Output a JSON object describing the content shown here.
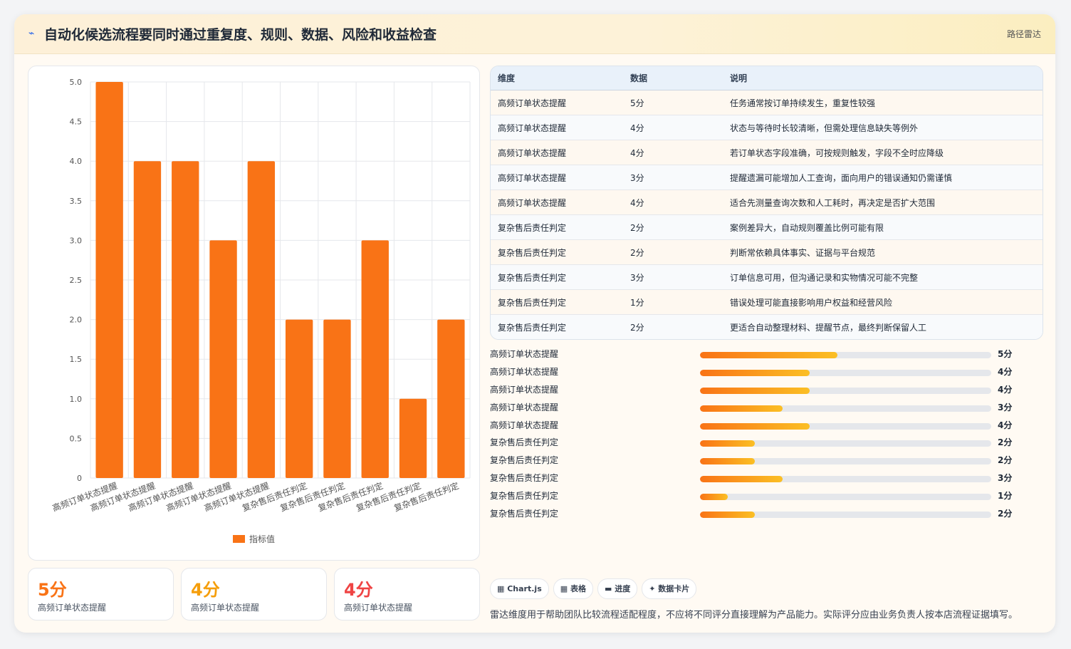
{
  "header": {
    "icon": "pulse-icon",
    "title": "自动化候选流程要同时通过重复度、规则、数据、风险和收益检查",
    "tag": "路径雷达"
  },
  "chart_data": {
    "type": "bar",
    "categories": [
      "高频订单状态提醒",
      "高频订单状态提醒",
      "高频订单状态提醒",
      "高频订单状态提醒",
      "高频订单状态提醒",
      "复杂售后责任判定",
      "复杂售后责任判定",
      "复杂售后责任判定",
      "复杂售后责任判定",
      "复杂售后责任判定"
    ],
    "series": [
      {
        "name": "指标值",
        "values": [
          5,
          4,
          4,
          3,
          4,
          2,
          2,
          3,
          1,
          2
        ]
      }
    ],
    "ylim": [
      0,
      5
    ],
    "yticks": [
      "0",
      "0.5",
      "1.0",
      "1.5",
      "2.0",
      "2.5",
      "3.0",
      "3.5",
      "4.0",
      "4.5",
      "5.0"
    ],
    "color": "#f97316",
    "grid": true,
    "legend": "bottom"
  },
  "stats": [
    {
      "value": "5分",
      "label": "高频订单状态提醒",
      "color": "#f97316"
    },
    {
      "value": "4分",
      "label": "高频订单状态提醒",
      "color": "#f59e0b"
    },
    {
      "value": "4分",
      "label": "高频订单状态提醒",
      "color": "#ef4444"
    }
  ],
  "table": {
    "headers": [
      "维度",
      "数据",
      "说明"
    ],
    "rows": [
      [
        "高频订单状态提醒",
        "5分",
        "任务通常按订单持续发生，重复性较强"
      ],
      [
        "高频订单状态提醒",
        "4分",
        "状态与等待时长较清晰，但需处理信息缺失等例外"
      ],
      [
        "高频订单状态提醒",
        "4分",
        "若订单状态字段准确，可按规则触发，字段不全时应降级"
      ],
      [
        "高频订单状态提醒",
        "3分",
        "提醒遗漏可能增加人工查询，面向用户的错误通知仍需谨慎"
      ],
      [
        "高频订单状态提醒",
        "4分",
        "适合先测量查询次数和人工耗时，再决定是否扩大范围"
      ],
      [
        "复杂售后责任判定",
        "2分",
        "案例差异大，自动规则覆盖比例可能有限"
      ],
      [
        "复杂售后责任判定",
        "2分",
        "判断常依赖具体事实、证据与平台规范"
      ],
      [
        "复杂售后责任判定",
        "3分",
        "订单信息可用，但沟通记录和实物情况可能不完整"
      ],
      [
        "复杂售后责任判定",
        "1分",
        "错误处理可能直接影响用户权益和经营风险"
      ],
      [
        "复杂售后责任判定",
        "2分",
        "更适合自动整理材料、提醒节点，最终判断保留人工"
      ]
    ]
  },
  "progress": [
    {
      "label": "高频订单状态提醒",
      "value": 5,
      "display": "5分"
    },
    {
      "label": "高频订单状态提醒",
      "value": 4,
      "display": "4分"
    },
    {
      "label": "高频订单状态提醒",
      "value": 4,
      "display": "4分"
    },
    {
      "label": "高频订单状态提醒",
      "value": 3,
      "display": "3分"
    },
    {
      "label": "高频订单状态提醒",
      "value": 4,
      "display": "4分"
    },
    {
      "label": "复杂售后责任判定",
      "value": 2,
      "display": "2分"
    },
    {
      "label": "复杂售后责任判定",
      "value": 2,
      "display": "2分"
    },
    {
      "label": "复杂售后责任判定",
      "value": 3,
      "display": "3分"
    },
    {
      "label": "复杂售后责任判定",
      "value": 1,
      "display": "1分"
    },
    {
      "label": "复杂售后责任判定",
      "value": 2,
      "display": "2分"
    }
  ],
  "progress_max": 10.6,
  "chips": [
    {
      "icon": "grid-icon",
      "glyph": "▦",
      "label": "Chart.js"
    },
    {
      "icon": "table-icon",
      "glyph": "▦",
      "label": "表格"
    },
    {
      "icon": "progress-icon",
      "glyph": "▬",
      "label": "进度"
    },
    {
      "icon": "sparkle-icon",
      "glyph": "✦",
      "label": "数据卡片"
    }
  ],
  "note": "雷达维度用于帮助团队比较流程适配程度，不应将不同评分直接理解为产品能力。实际评分应由业务负责人按本店流程证据填写。"
}
